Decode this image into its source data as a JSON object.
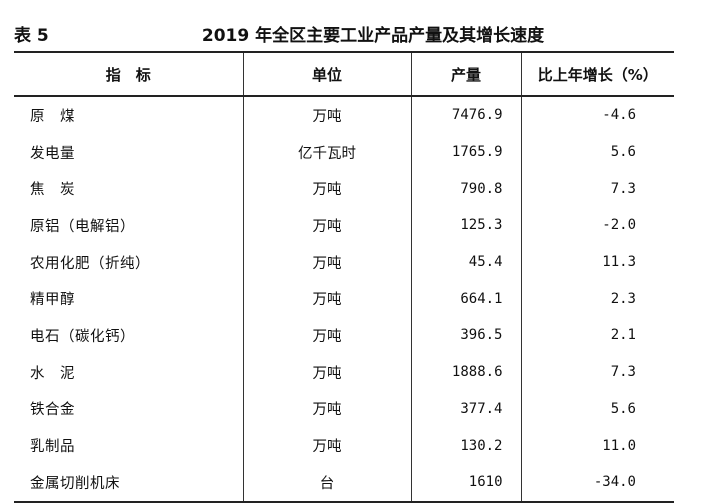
{
  "table_label": "表 5",
  "title": "2019 年全区主要工业产品产量及其增长速度",
  "headers": {
    "indicator": "指　标",
    "unit": "单位",
    "output": "产量",
    "growth": "比上年增长（%）"
  },
  "rows": [
    {
      "indicator": "原　煤",
      "unit": "万吨",
      "output": "7476.9",
      "growth": "-4.6"
    },
    {
      "indicator": "发电量",
      "unit": "亿千瓦时",
      "output": "1765.9",
      "growth": "5.6"
    },
    {
      "indicator": "焦　炭",
      "unit": "万吨",
      "output": "790.8",
      "growth": "7.3"
    },
    {
      "indicator": "原铝（电解铝）",
      "unit": "万吨",
      "output": "125.3",
      "growth": "-2.0"
    },
    {
      "indicator": "农用化肥（折纯）",
      "unit": "万吨",
      "output": "45.4",
      "growth": "11.3"
    },
    {
      "indicator": "精甲醇",
      "unit": "万吨",
      "output": "664.1",
      "growth": "2.3"
    },
    {
      "indicator": "电石（碳化钙）",
      "unit": "万吨",
      "output": "396.5",
      "growth": "2.1"
    },
    {
      "indicator": "水　泥",
      "unit": "万吨",
      "output": "1888.6",
      "growth": "7.3"
    },
    {
      "indicator": "铁合金",
      "unit": "万吨",
      "output": "377.4",
      "growth": "5.6"
    },
    {
      "indicator": "乳制品",
      "unit": "万吨",
      "output": "130.2",
      "growth": "11.0"
    },
    {
      "indicator": "金属切削机床",
      "unit": "台",
      "output": "1610",
      "growth": "-34.0"
    }
  ]
}
